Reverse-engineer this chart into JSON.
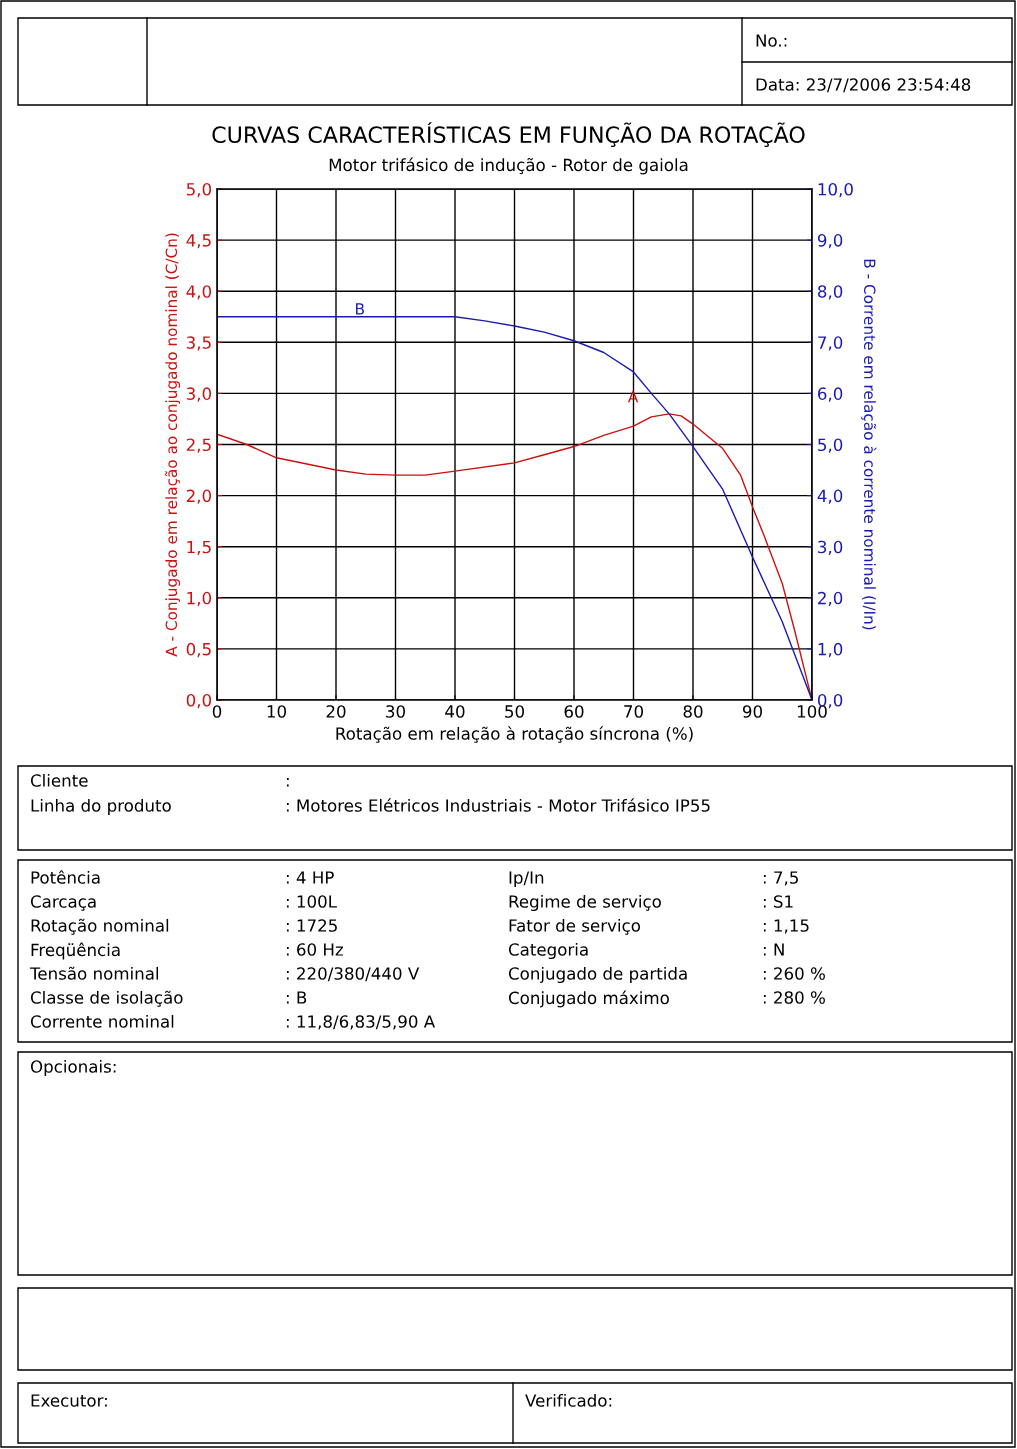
{
  "chart_data": {
    "type": "line",
    "title": "CURVAS CARACTERÍSTICAS EM FUNÇÃO DA ROTAÇÃO",
    "subtitle": "Motor trifásico de indução - Rotor de gaiola",
    "xlabel": "Rotação em relação à rotação síncrona (%)",
    "ylabel": "A - Conjugado em relação ao conjugado nominal (C/Cn)",
    "y2label": "B - Corrente em relação à corrente nominal (I/In)",
    "series": [
      {
        "name": "A",
        "color": "#cc1111",
        "x": [
          0,
          5,
          10,
          20,
          25,
          30,
          35,
          40,
          50,
          55,
          60,
          65,
          70,
          73,
          76,
          78,
          80,
          85,
          88,
          90,
          92,
          95,
          97,
          100
        ],
        "values": [
          2.6,
          2.5,
          2.37,
          2.25,
          2.21,
          2.2,
          2.2,
          2.24,
          2.32,
          2.4,
          2.48,
          2.59,
          2.68,
          2.77,
          2.8,
          2.78,
          2.7,
          2.46,
          2.2,
          1.89,
          1.6,
          1.14,
          0.7,
          0.0
        ]
      },
      {
        "name": "B",
        "color": "#1a1ab4",
        "axis": "y2",
        "x": [
          0,
          40,
          45,
          50,
          55,
          60,
          65,
          70,
          73,
          76,
          80,
          85,
          90,
          95,
          100
        ],
        "values": [
          7.5,
          7.5,
          7.42,
          7.32,
          7.2,
          7.03,
          6.8,
          6.42,
          6.0,
          5.6,
          4.96,
          4.12,
          2.8,
          1.53,
          0.0
        ]
      }
    ],
    "xlim": [
      0,
      100
    ],
    "xticks": [
      0,
      10,
      20,
      30,
      40,
      50,
      60,
      70,
      80,
      90,
      100
    ],
    "ylim": [
      0,
      5
    ],
    "yticks": [
      {
        "value": 0,
        "label": "0,0"
      },
      {
        "value": 0.5,
        "label": "0,5"
      },
      {
        "value": 1,
        "label": "1,0"
      },
      {
        "value": 1.5,
        "label": "1,5"
      },
      {
        "value": 2,
        "label": "2,0"
      },
      {
        "value": 2.5,
        "label": "2,5"
      },
      {
        "value": 3,
        "label": "3,0"
      },
      {
        "value": 3.5,
        "label": "3,5"
      },
      {
        "value": 4,
        "label": "4,0"
      },
      {
        "value": 4.5,
        "label": "4,5"
      },
      {
        "value": 5,
        "label": "5,0"
      }
    ],
    "y2lim": [
      0,
      10
    ],
    "y2ticks": [
      {
        "value": 0,
        "label": "0,0"
      },
      {
        "value": 1,
        "label": "1,0"
      },
      {
        "value": 2,
        "label": "2,0"
      },
      {
        "value": 3,
        "label": "3,0"
      },
      {
        "value": 4,
        "label": "4,0"
      },
      {
        "value": 5,
        "label": "5,0"
      },
      {
        "value": 6,
        "label": "6,0"
      },
      {
        "value": 7,
        "label": "7,0"
      },
      {
        "value": 8,
        "label": "8,0"
      },
      {
        "value": 9,
        "label": "9,0"
      },
      {
        "value": 10,
        "label": "10,0"
      }
    ],
    "grid": true,
    "marker": "none",
    "line_style": "solid",
    "annotations": [
      "No.:",
      "Data: 23/7/2006 23:54:48",
      "Cliente",
      ":",
      "Linha do produto",
      ": Motores Elétricos Industriais - Motor Trifásico IP55",
      "Potência",
      ": 4 HP",
      "Carcaça",
      ": 100L",
      "Rotação nominal",
      ": 1725",
      "Freqüência",
      ": 60 Hz",
      "Tensão nominal",
      ": 220/380/440 V",
      "Classe de isolação",
      ": B",
      "Corrente nominal",
      ": 11,8/6,83/5,90 A",
      "Ip/In",
      ": 7,5",
      "Regime de serviço",
      ": S1",
      "Fator de serviço",
      ": 1,15",
      "Categoria",
      ": N",
      "Conjugado de partida",
      ": 260 %",
      "Conjugado máximo",
      ": 280 %",
      "Opcionais:",
      "Executor:",
      "Verificado:"
    ]
  }
}
